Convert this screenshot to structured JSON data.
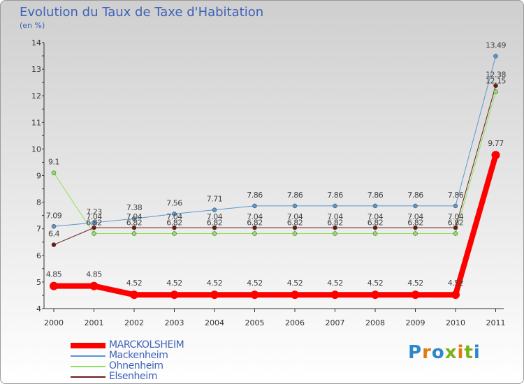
{
  "title": "Evolution du Taux de Taxe d'Habitation",
  "subtitle": "(en %)",
  "logo": {
    "text": "Proxiti",
    "colors": [
      "#2f86c9",
      "#e07a10",
      "#2f86c9",
      "#7ab317",
      "#e07a10",
      "#7ab317",
      "#2f86c9"
    ]
  },
  "chart_data": {
    "type": "line",
    "title": "Evolution du Taux de Taxe d'Habitation",
    "ylabel": "(en %)",
    "xlabel": "",
    "ylim": [
      4,
      14
    ],
    "yticks": [
      "4",
      "5",
      "6",
      "7",
      "8",
      "9",
      "10",
      "11",
      "12",
      "13",
      "14"
    ],
    "x": [
      "2000",
      "2001",
      "2002",
      "2003",
      "2004",
      "2005",
      "2006",
      "2007",
      "2008",
      "2009",
      "2010",
      "2011"
    ],
    "grid": false,
    "legend_position": "bottom-left",
    "series": [
      {
        "name": "MARCKOLSHEIM",
        "color": "#ff0000",
        "values": [
          4.85,
          4.85,
          4.52,
          4.52,
          4.52,
          4.52,
          4.52,
          4.52,
          4.52,
          4.52,
          4.52,
          9.77
        ],
        "labels": [
          "4.85",
          "4.85",
          "4.52",
          "4.52",
          "4.52",
          "4.52",
          "4.52",
          "4.52",
          "4.52",
          "4.52",
          "4.52",
          "9.77"
        ]
      },
      {
        "name": "Mackenheim",
        "color": "#5b97cc",
        "values": [
          7.09,
          7.23,
          7.38,
          7.56,
          7.71,
          7.86,
          7.86,
          7.86,
          7.86,
          7.86,
          7.86,
          13.49
        ],
        "labels": [
          "7.09",
          "7.23",
          "7.38",
          "7.56",
          "7.71",
          "7.86",
          "7.86",
          "7.86",
          "7.86",
          "7.86",
          "7.86",
          "13.49"
        ]
      },
      {
        "name": "Ohnenheim",
        "color": "#8fe05a",
        "values": [
          9.1,
          6.82,
          6.82,
          6.82,
          6.82,
          6.82,
          6.82,
          6.82,
          6.82,
          6.82,
          6.82,
          12.15
        ],
        "labels": [
          "9.1",
          "6.82",
          "6.82",
          "6.82",
          "6.82",
          "6.82",
          "6.82",
          "6.82",
          "6.82",
          "6.82",
          "6.82",
          "12.15"
        ]
      },
      {
        "name": "Elsenheim",
        "color": "#6b1a1a",
        "values": [
          6.4,
          7.04,
          7.04,
          7.04,
          7.04,
          7.04,
          7.04,
          7.04,
          7.04,
          7.04,
          7.04,
          12.38
        ],
        "labels": [
          "6.4",
          "7.04",
          "7.04",
          "7.04",
          "7.04",
          "7.04",
          "7.04",
          "7.04",
          "7.04",
          "7.04",
          "7.04",
          "12.38"
        ]
      }
    ]
  }
}
